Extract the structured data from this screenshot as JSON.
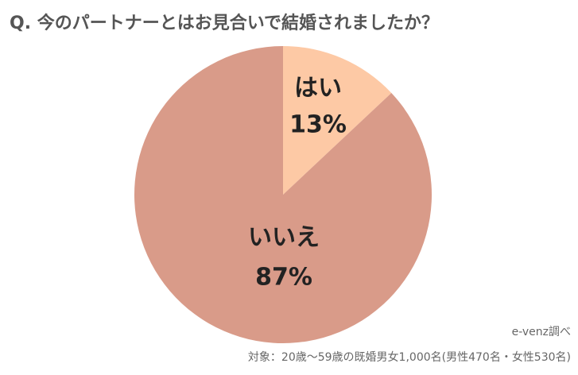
{
  "chart_data": {
    "type": "pie",
    "title": "Q. 今のパートナーとはお見合いで結婚されましたか？",
    "categories": [
      "はい",
      "いいえ"
    ],
    "values": [
      13,
      87
    ],
    "value_labels": [
      "13%",
      "87%"
    ],
    "colors": [
      "#fdc9a5",
      "#d99b89"
    ],
    "source": "e-venz調べ",
    "note": "対象：20歳〜59歳の既婚男女1,000名(男性470名・女性530名)"
  }
}
